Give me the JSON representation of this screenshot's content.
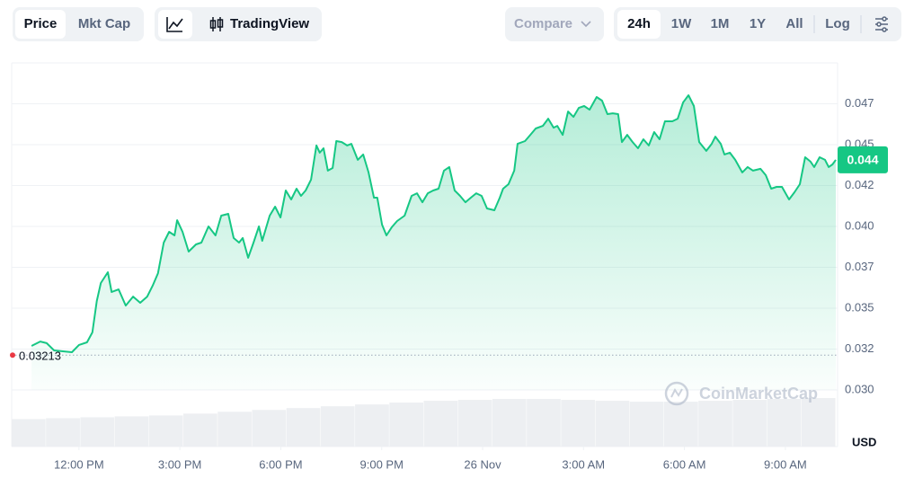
{
  "toolbar": {
    "tabs": [
      "Price",
      "Mkt Cap"
    ],
    "tradingview": "TradingView",
    "compare": "Compare",
    "ranges": [
      "24h",
      "1W",
      "1M",
      "1Y",
      "All"
    ],
    "log": "Log"
  },
  "chart_data": {
    "type": "line",
    "color": "#16c784",
    "watermark": "CoinMarketCap",
    "currency": "USD",
    "xlim": [
      10,
      34.5
    ],
    "ylim": [
      0.03,
      0.05
    ],
    "xticks": [
      {
        "value": 12,
        "label": "12:00 PM"
      },
      {
        "value": 15,
        "label": "3:00 PM"
      },
      {
        "value": 18,
        "label": "6:00 PM"
      },
      {
        "value": 21,
        "label": "9:00 PM"
      },
      {
        "value": 24,
        "label": "26 Nov"
      },
      {
        "value": 27,
        "label": "3:00 AM"
      },
      {
        "value": 30,
        "label": "6:00 AM"
      },
      {
        "value": 33,
        "label": "9:00 AM"
      }
    ],
    "yticks": [
      {
        "value": 0.03,
        "label": "0.030"
      },
      {
        "value": 0.0325,
        "label": "0.032"
      },
      0.035,
      {
        "value": 0.0375,
        "label": "0.037"
      },
      {
        "value": 0.04,
        "label": "0.040"
      },
      {
        "value": 0.0425,
        "label": "0.042"
      },
      0.045,
      {
        "value": 0.0475,
        "label": "0.047"
      }
    ],
    "grid": true,
    "baseline": 0.03213,
    "current_label": "0.044",
    "x": [
      10.59,
      10.85,
      11.04,
      11.26,
      11.79,
      12.0,
      12.24,
      12.4,
      12.53,
      12.65,
      12.86,
      12.97,
      13.18,
      13.39,
      13.61,
      13.82,
      14.03,
      14.19,
      14.35,
      14.52,
      14.68,
      14.84,
      14.92,
      15.08,
      15.26,
      15.48,
      15.64,
      15.85,
      16.06,
      16.23,
      16.44,
      16.6,
      16.76,
      16.87,
      17.03,
      17.19,
      17.35,
      17.45,
      17.67,
      17.83,
      17.99,
      18.15,
      18.31,
      18.47,
      18.6,
      18.74,
      18.9,
      19.06,
      19.16,
      19.27,
      19.4,
      19.54,
      19.65,
      19.81,
      19.97,
      20.1,
      20.29,
      20.45,
      20.61,
      20.77,
      20.87,
      21.01,
      21.14,
      21.3,
      21.46,
      21.68,
      21.89,
      22.05,
      22.21,
      22.37,
      22.53,
      22.69,
      22.85,
      23.01,
      23.17,
      23.33,
      23.49,
      23.65,
      23.81,
      23.97,
      24.13,
      24.35,
      24.51,
      24.61,
      24.77,
      24.94,
      25.04,
      25.26,
      25.42,
      25.58,
      25.79,
      25.95,
      26.11,
      26.22,
      26.38,
      26.54,
      26.7,
      26.86,
      27.02,
      27.18,
      27.39,
      27.55,
      27.71,
      27.87,
      28.03,
      28.14,
      28.3,
      28.46,
      28.62,
      28.78,
      28.94,
      29.1,
      29.26,
      29.42,
      29.64,
      29.8,
      29.96,
      30.12,
      30.28,
      30.44,
      30.65,
      30.81,
      30.92,
      31.08,
      31.19,
      31.35,
      31.51,
      31.72,
      31.88,
      32.04,
      32.26,
      32.42,
      32.58,
      32.74,
      32.9,
      33.11,
      33.27,
      33.43,
      33.59,
      33.75,
      33.86,
      34.02,
      34.18,
      34.29,
      34.4,
      34.5
    ],
    "values": [
      0.03269,
      0.03296,
      0.03286,
      0.03242,
      0.03231,
      0.03275,
      0.03291,
      0.03352,
      0.03544,
      0.03654,
      0.0372,
      0.03599,
      0.03615,
      0.03516,
      0.03571,
      0.03533,
      0.03571,
      0.03637,
      0.03714,
      0.03901,
      0.03967,
      0.03945,
      0.04038,
      0.03967,
      0.03846,
      0.0389,
      0.03901,
      0.04,
      0.03945,
      0.04066,
      0.04077,
      0.03929,
      0.03901,
      0.03929,
      0.03808,
      0.03901,
      0.04,
      0.03912,
      0.04066,
      0.04121,
      0.04055,
      0.0422,
      0.04165,
      0.04231,
      0.04187,
      0.0422,
      0.04286,
      0.04495,
      0.04451,
      0.04478,
      0.04341,
      0.04357,
      0.04522,
      0.04516,
      0.04495,
      0.04505,
      0.04407,
      0.0444,
      0.0433,
      0.04176,
      0.04176,
      0.04011,
      0.03945,
      0.03995,
      0.04033,
      0.04066,
      0.04187,
      0.04203,
      0.04148,
      0.04203,
      0.0422,
      0.04231,
      0.04341,
      0.04363,
      0.0422,
      0.04187,
      0.04148,
      0.04176,
      0.04203,
      0.04187,
      0.0411,
      0.04099,
      0.04176,
      0.04231,
      0.04258,
      0.04341,
      0.04505,
      0.04522,
      0.0456,
      0.04599,
      0.04615,
      0.04659,
      0.04604,
      0.04615,
      0.0456,
      0.04703,
      0.0467,
      0.04725,
      0.04736,
      0.04714,
      0.04791,
      0.04769,
      0.04687,
      0.04692,
      0.04687,
      0.04516,
      0.0456,
      0.04516,
      0.04478,
      0.04533,
      0.04495,
      0.04577,
      0.04533,
      0.04643,
      0.04643,
      0.04659,
      0.04758,
      0.04802,
      0.04736,
      0.04516,
      0.04462,
      0.04505,
      0.04549,
      0.04505,
      0.0444,
      0.04451,
      0.04407,
      0.0433,
      0.04363,
      0.04341,
      0.04352,
      0.04313,
      0.04231,
      0.04242,
      0.04242,
      0.04165,
      0.04209,
      0.04258,
      0.04423,
      0.04396,
      0.04363,
      0.04423,
      0.04407,
      0.04363,
      0.04379,
      0.04407
    ],
    "volume_values": [
      30,
      31,
      32,
      33,
      34,
      36,
      38,
      40,
      42,
      44,
      46,
      48,
      50,
      51,
      52,
      52,
      51,
      50,
      49,
      49,
      50,
      51,
      52,
      53
    ]
  }
}
